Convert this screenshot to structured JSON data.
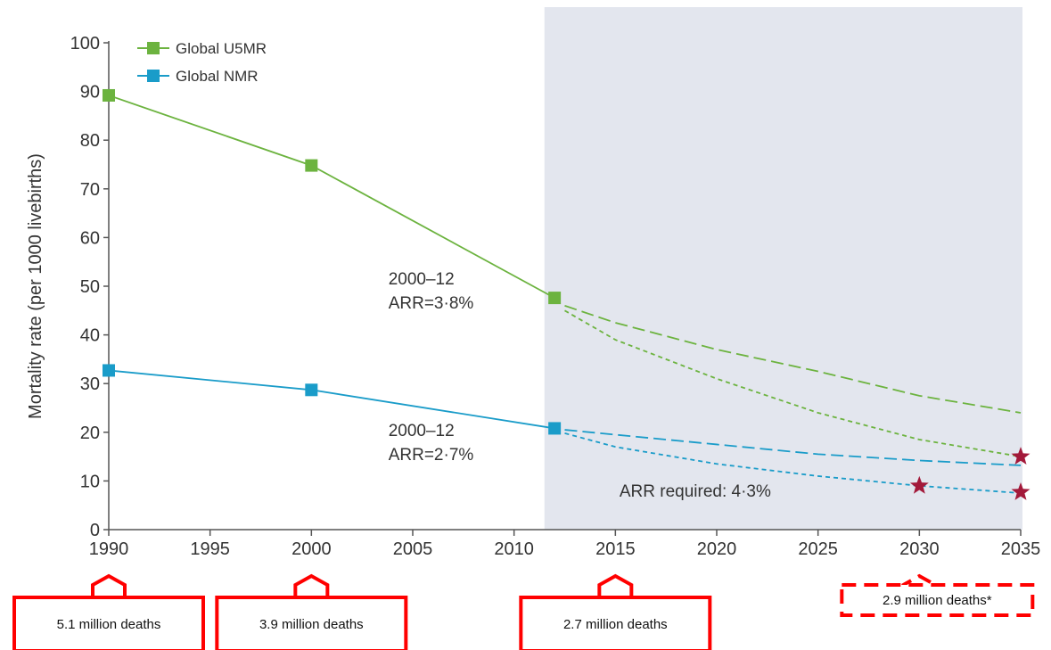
{
  "chart_data": {
    "type": "line",
    "title": "",
    "xlabel": "",
    "ylabel": "Mortality rate (per 1000 livebirths)",
    "xlim": [
      1990,
      2035
    ],
    "ylim": [
      0,
      100
    ],
    "x_ticks": [
      1990,
      1995,
      2000,
      2005,
      2010,
      2015,
      2020,
      2025,
      2030,
      2035
    ],
    "y_ticks": [
      0,
      10,
      20,
      30,
      40,
      50,
      60,
      70,
      80,
      90,
      100
    ],
    "grid": false,
    "legend_position": "top-left",
    "shaded_region": {
      "x_start": 2011.5,
      "x_end": 2035,
      "color": "#e3e6ee"
    },
    "series": [
      {
        "name": "Global U5MR",
        "color": "#6cb33f",
        "observed": {
          "x": [
            1990,
            2000,
            2012
          ],
          "y": [
            89.2,
            74.8,
            47.6
          ]
        },
        "projection_long_dash": {
          "x": [
            2012.5,
            2015,
            2020,
            2025,
            2030,
            2035
          ],
          "y": [
            46.0,
            42.5,
            37.0,
            32.5,
            27.5,
            24.0
          ]
        },
        "projection_short_dash": {
          "x": [
            2012.5,
            2015,
            2020,
            2025,
            2030,
            2035
          ],
          "y": [
            45.0,
            39.0,
            31.0,
            24.0,
            18.5,
            15.0
          ]
        }
      },
      {
        "name": "Global NMR",
        "color": "#1a9cc9",
        "observed": {
          "x": [
            1990,
            2000,
            2012
          ],
          "y": [
            32.7,
            28.7,
            20.8
          ]
        },
        "projection_long_dash": {
          "x": [
            2012.5,
            2015,
            2020,
            2025,
            2030,
            2035
          ],
          "y": [
            20.5,
            19.5,
            17.5,
            15.5,
            14.2,
            13.2
          ]
        },
        "projection_short_dash": {
          "x": [
            2012.5,
            2015,
            2020,
            2025,
            2030,
            2035
          ],
          "y": [
            19.8,
            17.0,
            13.5,
            11.0,
            9.0,
            7.5
          ]
        }
      }
    ],
    "stars": [
      {
        "x": 2030,
        "y": 9.0,
        "color": "#a3193a"
      },
      {
        "x": 2035,
        "y": 15.0,
        "color": "#a3193a"
      },
      {
        "x": 2035,
        "y": 7.7,
        "color": "#a3193a"
      }
    ],
    "annotations": [
      {
        "lines": [
          "2000–12",
          "ARR=3·8%"
        ],
        "x": 2003.8,
        "y": 50.4
      },
      {
        "lines": [
          "2000–12",
          "ARR=2·7%"
        ],
        "x": 2003.8,
        "y": 19.2
      },
      {
        "lines": [
          "ARR required: 4·3%"
        ],
        "x": 2015.2,
        "y": 6.8
      }
    ],
    "callouts": [
      {
        "label": "5.1 million deaths",
        "x": 1990,
        "style": "solid"
      },
      {
        "label": "3.9 million deaths",
        "x": 2000,
        "style": "solid"
      },
      {
        "label": "2.7 million deaths",
        "x": 2015,
        "style": "solid"
      },
      {
        "label": "2.9 million deaths*",
        "x": 2030,
        "style": "dashed"
      }
    ],
    "callout_color": "#ff0000"
  }
}
